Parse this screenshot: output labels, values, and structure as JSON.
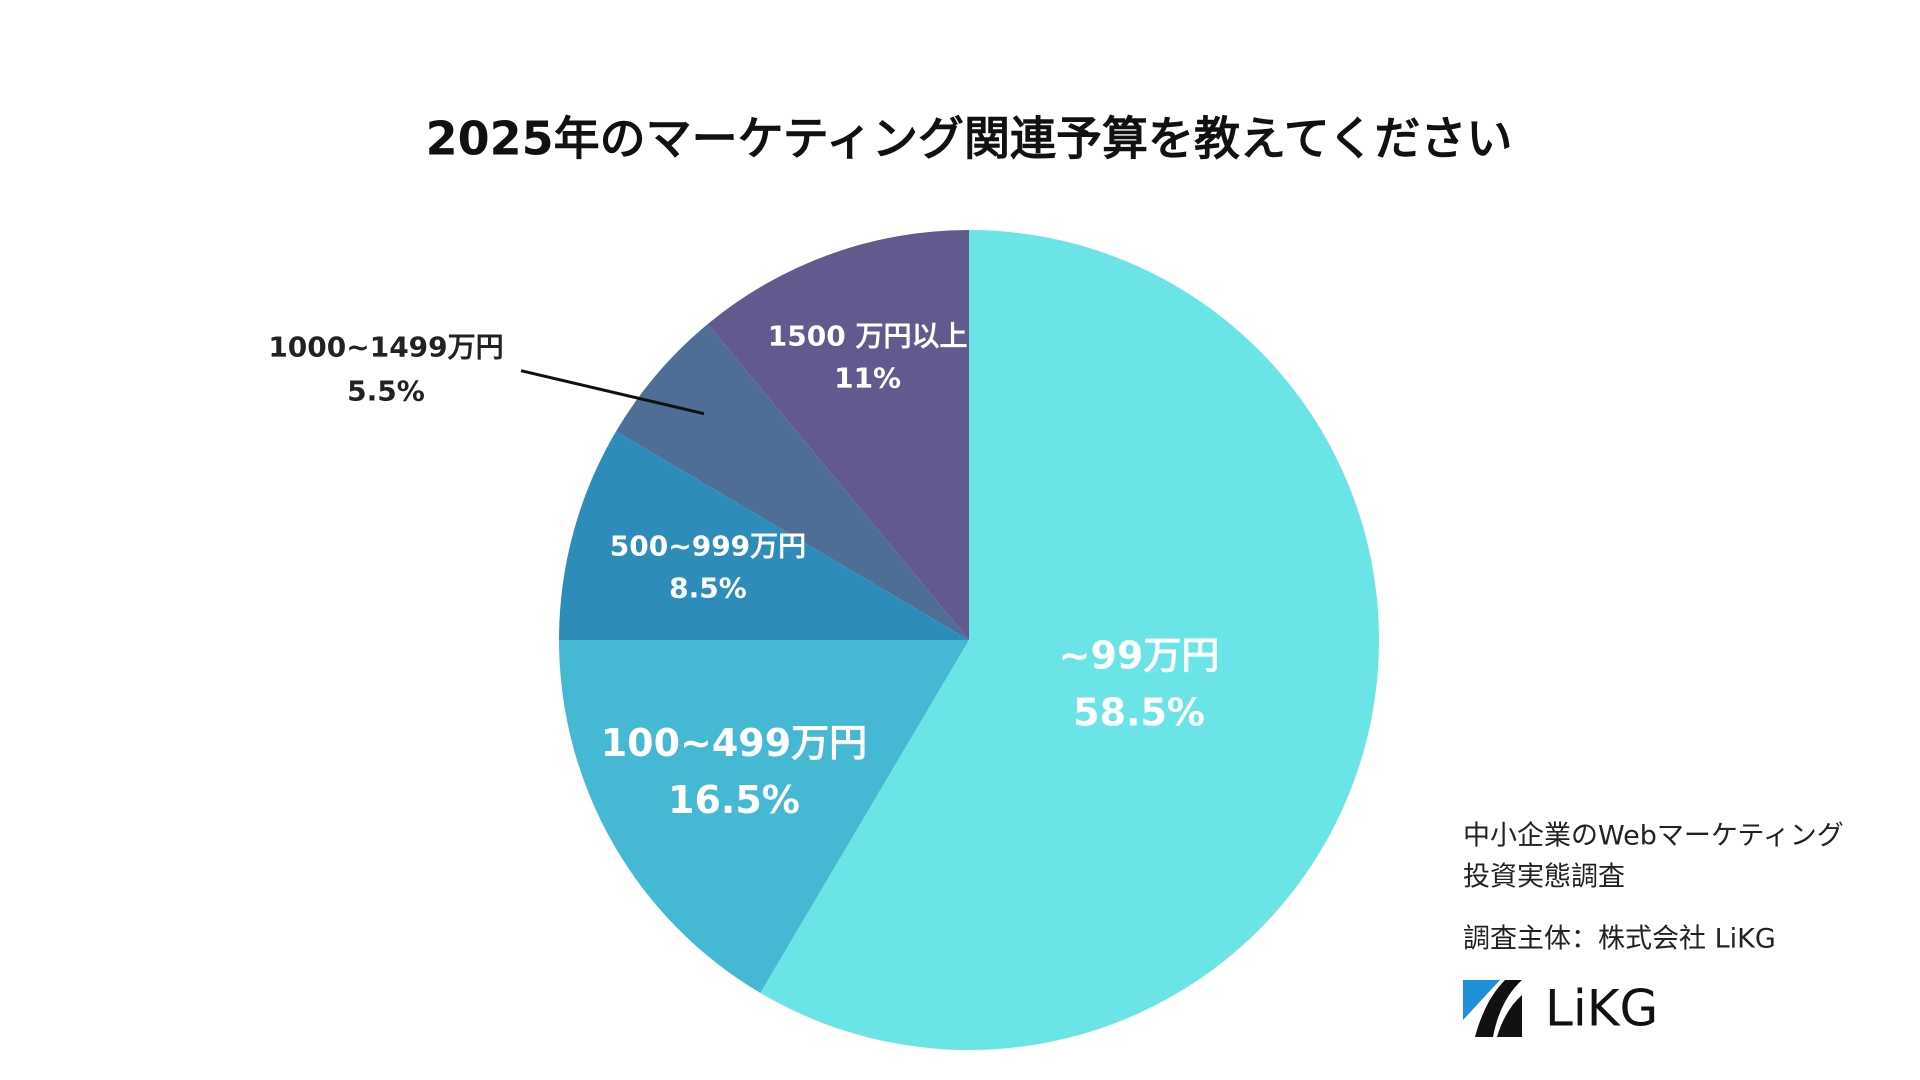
{
  "chart_data": {
    "type": "pie",
    "title": "2025年のマーケティング関連予算を教えてください",
    "categories": [
      "~99万円",
      "100~499万円",
      "500~999万円",
      "1000~1499万円",
      "1500 万円以上"
    ],
    "values": [
      58.5,
      16.5,
      8.5,
      5.5,
      11
    ],
    "value_labels": [
      "58.5%",
      "16.5%",
      "8.5%",
      "5.5%",
      "11%"
    ],
    "colors": [
      "#6ae4e6",
      "#45b8d4",
      "#2e8cbb",
      "#4f6e96",
      "#625a8e"
    ],
    "source_lines": [
      "中小企業のWebマーケティング",
      "投資実態調査"
    ],
    "sponsor": "調査主体：株式会社 LiKG",
    "logo": "LiKG"
  }
}
